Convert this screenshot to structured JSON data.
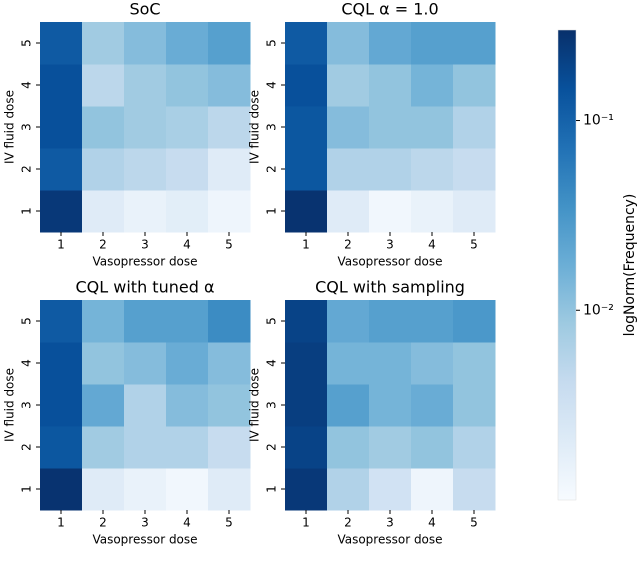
{
  "chart_data": [
    {
      "type": "heatmap",
      "title": "SoC",
      "xlabel": "Vasopressor dose",
      "ylabel": "IV fluid dose",
      "categories": [
        1,
        2,
        3,
        4,
        5
      ],
      "y_categories": [
        1,
        2,
        3,
        4,
        5
      ],
      "values": [
        [
          0.25,
          0.002,
          0.0015,
          0.0018,
          0.0013
        ],
        [
          0.12,
          0.006,
          0.005,
          0.004,
          0.002
        ],
        [
          0.15,
          0.01,
          0.008,
          0.007,
          0.005
        ],
        [
          0.15,
          0.005,
          0.008,
          0.01,
          0.012
        ],
        [
          0.12,
          0.008,
          0.012,
          0.018,
          0.025
        ]
      ]
    },
    {
      "type": "heatmap",
      "title": "CQL α = 1.0",
      "xlabel": "Vasopressor dose",
      "ylabel": "IV fluid dose",
      "categories": [
        1,
        2,
        3,
        4,
        5
      ],
      "y_categories": [
        1,
        2,
        3,
        4,
        5
      ],
      "values": [
        [
          0.28,
          0.002,
          0.0012,
          0.0015,
          0.002
        ],
        [
          0.13,
          0.006,
          0.006,
          0.005,
          0.004
        ],
        [
          0.13,
          0.012,
          0.01,
          0.01,
          0.006
        ],
        [
          0.15,
          0.008,
          0.01,
          0.015,
          0.01
        ],
        [
          0.12,
          0.012,
          0.02,
          0.025,
          0.025
        ]
      ]
    },
    {
      "type": "heatmap",
      "title": "CQL with tuned α",
      "xlabel": "Vasopressor dose",
      "ylabel": "IV fluid dose",
      "categories": [
        1,
        2,
        3,
        4,
        5
      ],
      "y_categories": [
        1,
        2,
        3,
        4,
        5
      ],
      "values": [
        [
          0.28,
          0.002,
          0.0015,
          0.0012,
          0.002
        ],
        [
          0.13,
          0.008,
          0.006,
          0.006,
          0.004
        ],
        [
          0.15,
          0.02,
          0.006,
          0.012,
          0.01
        ],
        [
          0.15,
          0.01,
          0.012,
          0.018,
          0.012
        ],
        [
          0.12,
          0.015,
          0.025,
          0.025,
          0.04
        ]
      ]
    },
    {
      "type": "heatmap",
      "title": "CQL with sampling",
      "xlabel": "Vasopressor dose",
      "ylabel": "IV fluid dose",
      "categories": [
        1,
        2,
        3,
        4,
        5
      ],
      "y_categories": [
        1,
        2,
        3,
        4,
        5
      ],
      "values": [
        [
          0.25,
          0.006,
          0.003,
          0.0013,
          0.004
        ],
        [
          0.2,
          0.01,
          0.008,
          0.01,
          0.006
        ],
        [
          0.22,
          0.025,
          0.015,
          0.018,
          0.01
        ],
        [
          0.22,
          0.015,
          0.015,
          0.012,
          0.01
        ],
        [
          0.2,
          0.02,
          0.025,
          0.025,
          0.03
        ]
      ]
    }
  ],
  "colorbar": {
    "label": "logNorm(Frequency)",
    "scale": "log",
    "lim": [
      0.001,
      0.3
    ],
    "ticks": [
      {
        "value": 0.01,
        "label": "10⁻²"
      },
      {
        "value": 0.1,
        "label": "10⁻¹"
      }
    ],
    "colormap": [
      "#f7fbff",
      "#deebf7",
      "#c6dbef",
      "#9ecae1",
      "#6baed6",
      "#4292c6",
      "#2171b5",
      "#08519c",
      "#08306b"
    ]
  }
}
